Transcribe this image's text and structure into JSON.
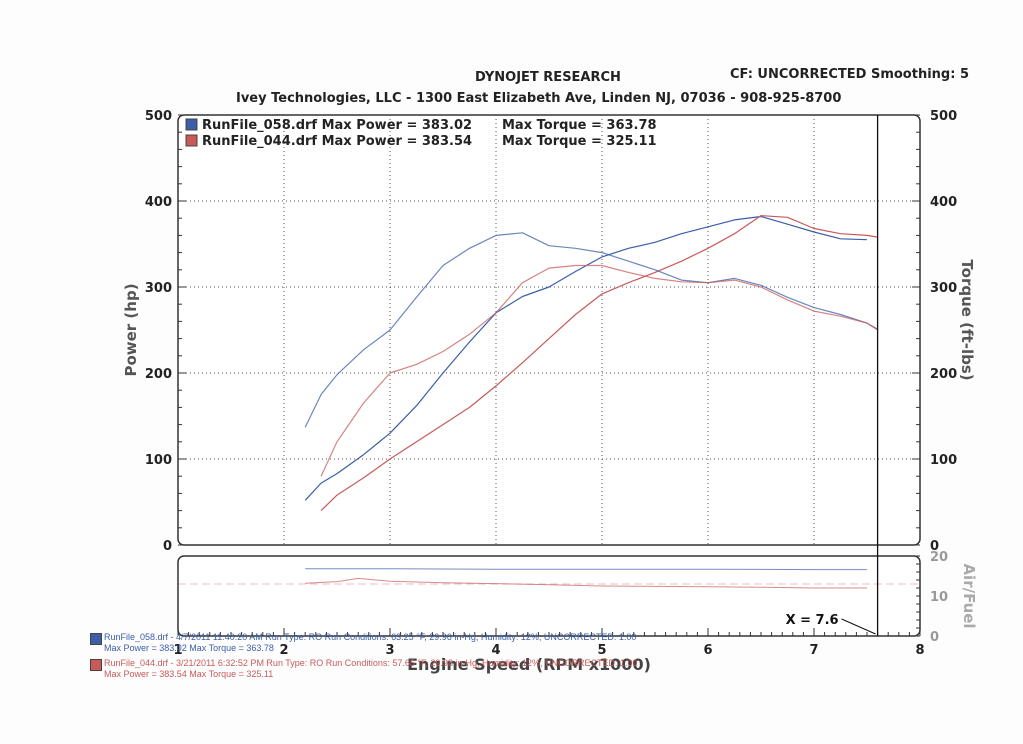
{
  "header": {
    "title": "DYNOJET RESEARCH",
    "cf": "CF: UNCORRECTED  Smoothing: 5",
    "shop": "Ivey Technologies, LLC - 1300 East Elizabeth Ave, Linden NJ, 07036 - 908-925-8700"
  },
  "legend": [
    {
      "file": "RunFile_058.drf",
      "max_power_label": "Max Power = 383.02",
      "max_torque_label": "Max Torque = 363.78",
      "color": "#3a5ea8"
    },
    {
      "file": "RunFile_044.drf",
      "max_power_label": "Max Power = 383.54",
      "max_torque_label": "Max Torque = 325.11",
      "color": "#c85a5a"
    }
  ],
  "footer": [
    {
      "line1": "RunFile_058.drf - 4/7/2011 11:40:20 AM  Run Type: RO  Run Conditions: 63.25 °F, 29.96 in-Hg, Humidity: 12%, UNCORRECTED: 1.00",
      "line2": "Max Power = 383.02  Max Torque = 363.78",
      "color": "#3a5ea8"
    },
    {
      "line1": "RunFile_044.drf - 3/21/2011 6:32:52 PM  Run Type: RO  Run Conditions: 57.65 °F, 29.98 in-Hg, Humidity: 12%, UNCORRECTED: 1.00",
      "line2": "Max Power = 383.54  Max Torque = 325.11",
      "color": "#c85a5a"
    }
  ],
  "cursor_label": "X = 7.6",
  "chart_data": [
    {
      "type": "line",
      "title": "DYNOJET RESEARCH",
      "xlabel": "Engine Speed (RPM x1000)",
      "ylabel": "Power (hp)",
      "y2label": "Torque (ft-lbs)",
      "xlim": [
        1,
        8
      ],
      "ylim": [
        0,
        500
      ],
      "y2lim": [
        0,
        500
      ],
      "x_ticks": [
        "1",
        "2",
        "3",
        "4",
        "5",
        "6",
        "7",
        "8"
      ],
      "y_ticks": [
        "0",
        "100",
        "200",
        "300",
        "400",
        "500"
      ],
      "y2_ticks": [
        "0",
        "100",
        "200",
        "300",
        "400",
        "500"
      ],
      "grid": true,
      "legend_position": "top-left",
      "cursor_x": 7.6,
      "series": [
        {
          "name": "RunFile_058.drf",
          "quantity": "power",
          "color": "#3a5ea8",
          "x": [
            2.2,
            2.35,
            2.5,
            2.75,
            3.0,
            3.25,
            3.5,
            3.75,
            4.0,
            4.25,
            4.5,
            4.75,
            5.0,
            5.25,
            5.5,
            5.75,
            6.0,
            6.25,
            6.5,
            6.75,
            7.0,
            7.25,
            7.5
          ],
          "y": [
            52,
            72,
            83,
            105,
            130,
            162,
            200,
            236,
            270,
            289,
            300,
            318,
            335,
            345,
            352,
            362,
            370,
            378,
            382,
            373,
            364,
            356,
            355
          ]
        },
        {
          "name": "RunFile_044.drf",
          "quantity": "power",
          "color": "#c85a5a",
          "x": [
            2.35,
            2.5,
            2.75,
            3.0,
            3.25,
            3.5,
            3.75,
            4.0,
            4.25,
            4.5,
            4.75,
            5.0,
            5.25,
            5.5,
            5.75,
            6.0,
            6.25,
            6.5,
            6.75,
            7.0,
            7.25,
            7.5,
            7.6
          ],
          "y": [
            40,
            58,
            78,
            100,
            120,
            140,
            160,
            185,
            212,
            240,
            268,
            292,
            305,
            317,
            330,
            345,
            362,
            383,
            381,
            368,
            362,
            360,
            358
          ]
        },
        {
          "name": "RunFile_058.drf",
          "quantity": "torque",
          "color": "#3a5ea8",
          "x": [
            2.2,
            2.35,
            2.5,
            2.75,
            3.0,
            3.25,
            3.5,
            3.75,
            4.0,
            4.25,
            4.5,
            4.75,
            5.0,
            5.25,
            5.5,
            5.75,
            6.0,
            6.25,
            6.5,
            6.75,
            7.0,
            7.25,
            7.5,
            7.6
          ],
          "y": [
            137,
            175,
            198,
            227,
            250,
            288,
            325,
            345,
            360,
            363,
            348,
            345,
            340,
            330,
            320,
            308,
            305,
            310,
            302,
            288,
            276,
            268,
            258,
            251
          ]
        },
        {
          "name": "RunFile_044.drf",
          "quantity": "torque",
          "color": "#c85a5a",
          "x": [
            2.35,
            2.5,
            2.75,
            3.0,
            3.25,
            3.5,
            3.75,
            4.0,
            4.25,
            4.5,
            4.75,
            5.0,
            5.25,
            5.5,
            5.75,
            6.0,
            6.25,
            6.5,
            6.75,
            7.0,
            7.25,
            7.5,
            7.6
          ],
          "y": [
            80,
            120,
            165,
            200,
            210,
            225,
            245,
            270,
            305,
            322,
            325,
            325,
            317,
            310,
            306,
            305,
            308,
            300,
            285,
            272,
            266,
            258,
            250
          ]
        }
      ]
    },
    {
      "type": "line",
      "ylabel": "Air/Fuel",
      "xlim": [
        1,
        8
      ],
      "ylim": [
        0,
        20
      ],
      "y_ticks": [
        "0",
        "10",
        "20"
      ],
      "x_ticks": [
        "1",
        "2",
        "3",
        "4",
        "5",
        "6",
        "7",
        "8"
      ],
      "series": [
        {
          "name": "RunFile_058.drf",
          "color": "#3a5ea8",
          "x": [
            2.2,
            3.0,
            4.0,
            5.0,
            6.0,
            7.0,
            7.5
          ],
          "y": [
            16.8,
            16.8,
            16.7,
            16.7,
            16.7,
            16.6,
            16.6
          ]
        },
        {
          "name": "RunFile_044.drf",
          "color": "#c85a5a",
          "x": [
            2.2,
            2.5,
            2.7,
            3.0,
            3.5,
            4.0,
            4.5,
            5.0,
            5.5,
            6.0,
            6.5,
            7.0,
            7.5
          ],
          "y": [
            13.2,
            13.6,
            14.4,
            13.7,
            13.3,
            13.1,
            12.8,
            12.5,
            12.4,
            12.3,
            12.2,
            12.0,
            12.0
          ]
        }
      ]
    }
  ]
}
